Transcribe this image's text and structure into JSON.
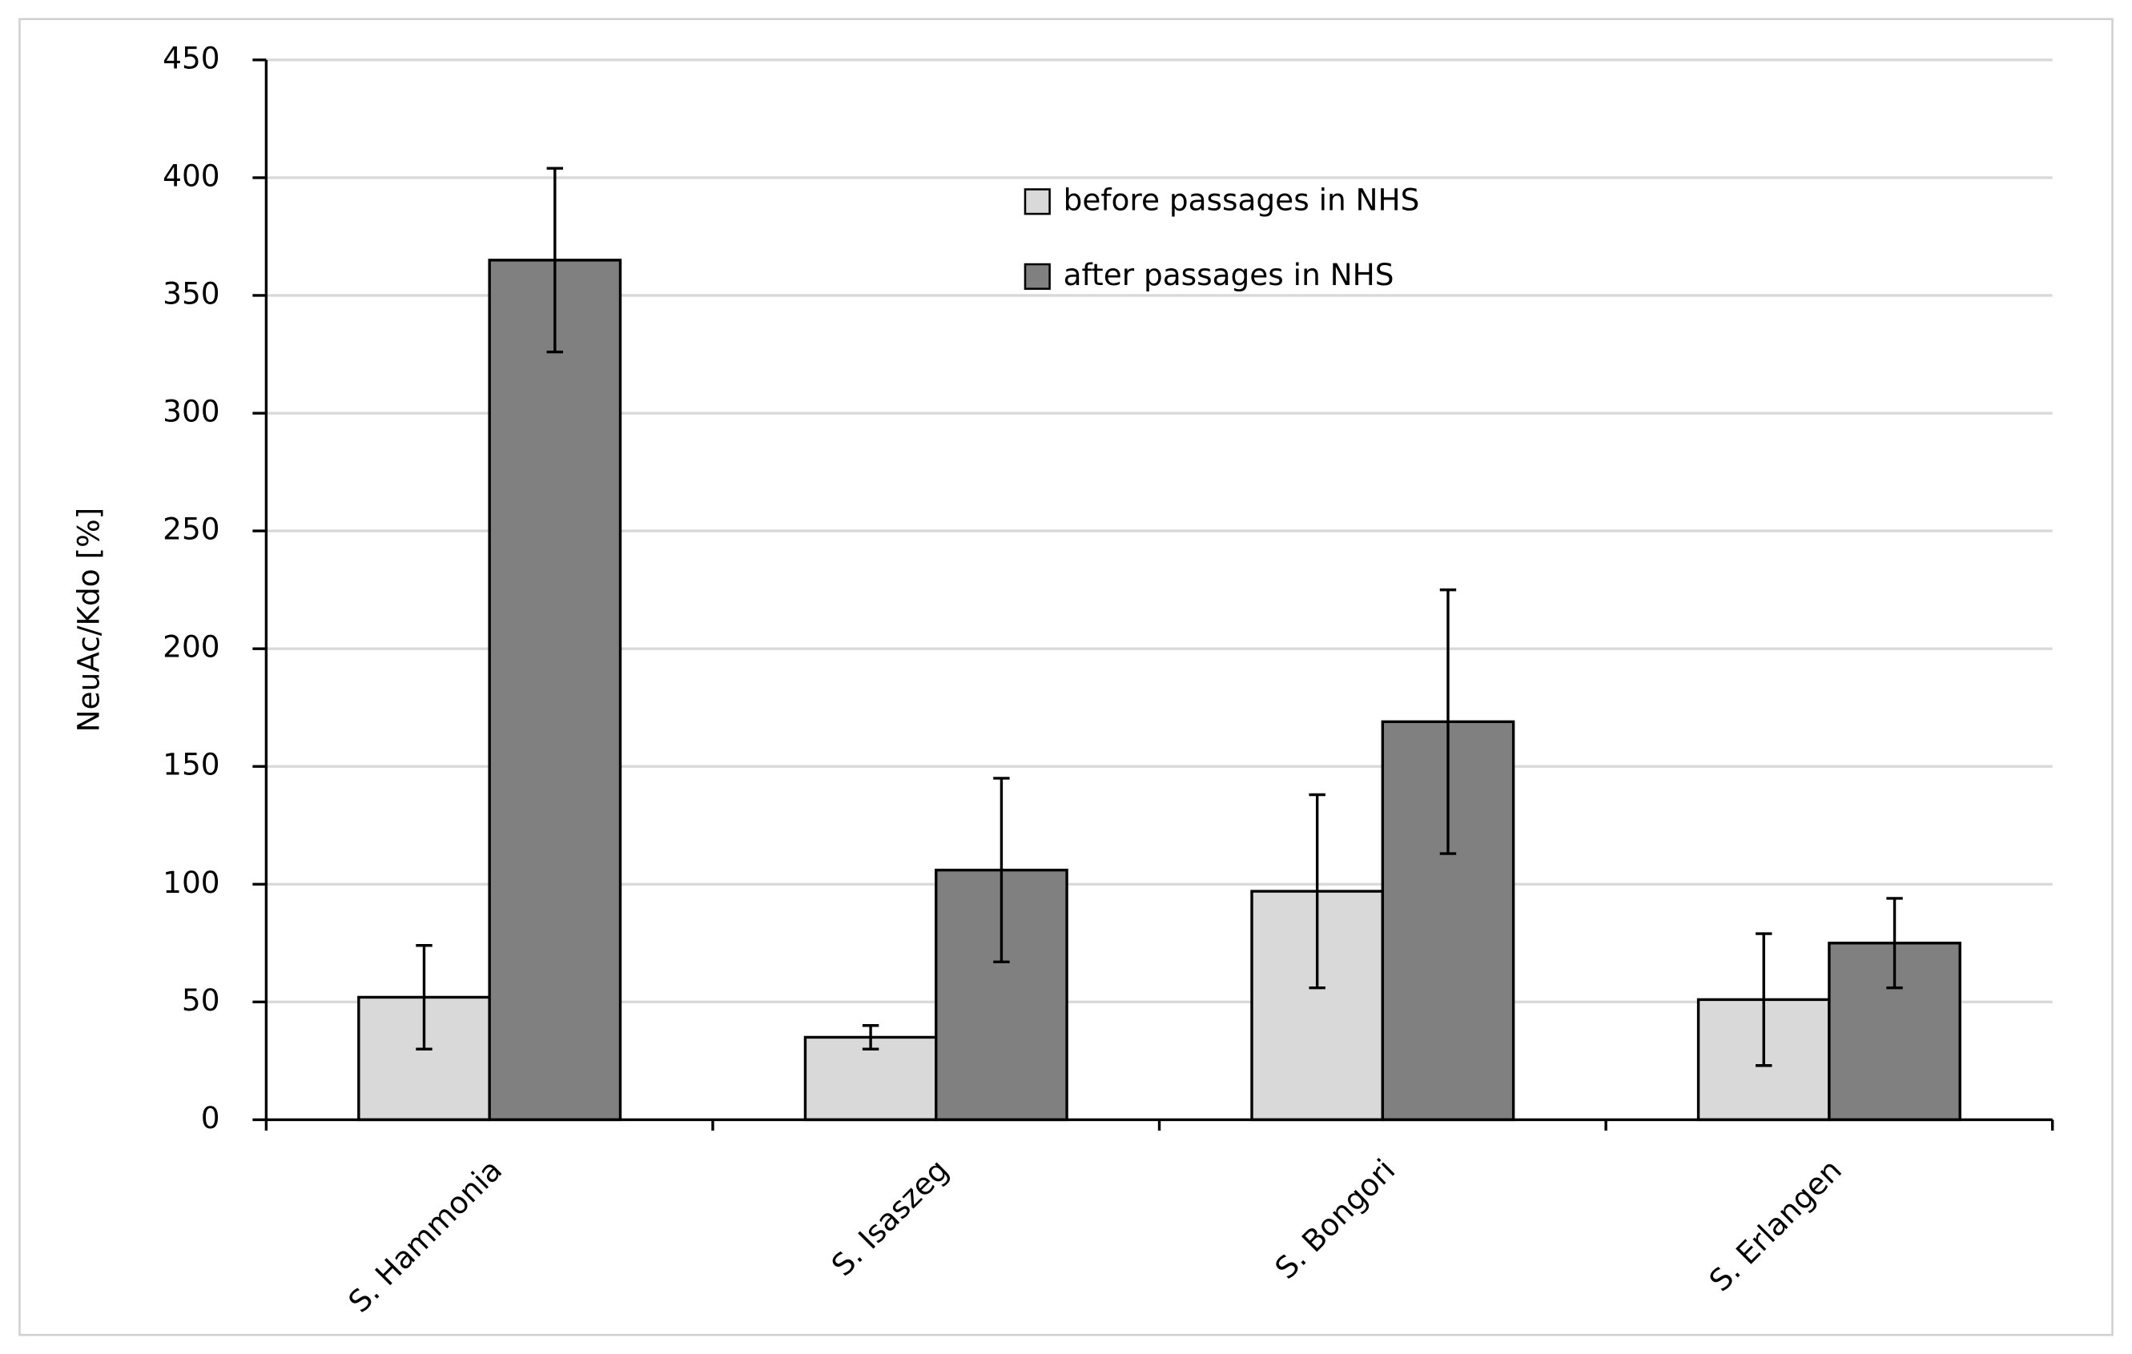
{
  "chart_data": {
    "type": "bar",
    "y_label": "NeuAc/Kdo [%]",
    "categories": [
      "S. Hammonia",
      "S. Isaszeg",
      "S. Bongori",
      "S. Erlangen"
    ],
    "series": [
      {
        "name": "before passages in NHS",
        "color": "#d9d9d9",
        "values": [
          52,
          35,
          97,
          51
        ],
        "errors": [
          22,
          5,
          41,
          28
        ]
      },
      {
        "name": "after passages in NHS",
        "color": "#808080",
        "values": [
          365,
          106,
          169,
          75
        ],
        "errors": [
          39,
          39,
          56,
          19
        ]
      }
    ],
    "ylim": [
      0,
      450
    ],
    "yticks": [
      0,
      50,
      100,
      150,
      200,
      250,
      300,
      350,
      400,
      450
    ],
    "grid": true
  }
}
